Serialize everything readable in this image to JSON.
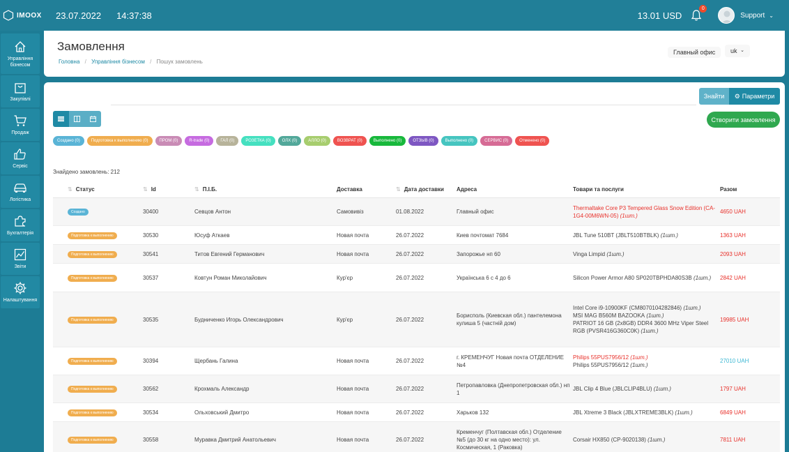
{
  "topbar": {
    "logo_text": "IMOOX",
    "date": "23.07.2022",
    "time": "14:37:38",
    "balance": "13.01 USD",
    "notifications_count": "0",
    "user_name": "Support"
  },
  "sidebar": {
    "items": [
      {
        "label": "Управління бізнесом",
        "icon": "home-icon"
      },
      {
        "label": "Закупівлі",
        "icon": "bag-icon"
      },
      {
        "label": "Продаж",
        "icon": "cart-icon"
      },
      {
        "label": "Сервіс",
        "icon": "thumbs-up-icon"
      },
      {
        "label": "Логістика",
        "icon": "car-icon"
      },
      {
        "label": "Бухгалтерія",
        "icon": "puzzle-icon"
      },
      {
        "label": "Звіти",
        "icon": "chart-icon"
      },
      {
        "label": "Налаштування",
        "icon": "gear-icon"
      }
    ]
  },
  "header": {
    "title": "Замовлення",
    "breadcrumb": [
      "Головна",
      "Управління бізнесом",
      "Пошук замовлень"
    ],
    "office": "Главный офис",
    "language": "uk"
  },
  "toolbar": {
    "find_label": "Знайти",
    "params_label": "Параметри",
    "create_label": "Створити замовлення"
  },
  "filters": [
    {
      "label": "Создано (0)",
      "color": "#5ab4d6"
    },
    {
      "label": "Подготовка к выполнению (0)",
      "color": "#f0ad4e"
    },
    {
      "label": "ПРОМ (0)",
      "color": "#c98bb5"
    },
    {
      "label": "R-trade (0)",
      "color": "#c66be0"
    },
    {
      "label": "ГАЛ (0)",
      "color": "#b7b39a"
    },
    {
      "label": "РОЗЕТКА (0)",
      "color": "#45e0c0"
    },
    {
      "label": "ОЛХ (0)",
      "color": "#52a89a"
    },
    {
      "label": "АЛЛО (0)",
      "color": "#a7cd6e"
    },
    {
      "label": "ВОЗВРАТ (0)",
      "color": "#ef5350"
    },
    {
      "label": "Выполнено (0)",
      "color": "#18b83c"
    },
    {
      "label": "ОТЗЫВ (0)",
      "color": "#7e57c2"
    },
    {
      "label": "Выполнено (0)",
      "color": "#46c5c0"
    },
    {
      "label": "СЕРВИС (0)",
      "color": "#d66b95"
    },
    {
      "label": "Отменено (0)",
      "color": "#ef5350"
    }
  ],
  "found_text": "Знайдено замовлень: 212",
  "table": {
    "headers": {
      "status": "Статус",
      "id": "Id",
      "name": "П.І.Б.",
      "delivery": "Доставка",
      "date": "Дата доставки",
      "address": "Адреса",
      "goods": "Товари та послуги",
      "sum": "Разом"
    },
    "rows": [
      {
        "status": "Создано",
        "status_color": "#5ab4d6",
        "id": "30400",
        "name": "Севцов Антон",
        "delivery": "Самовивіз",
        "date": "01.08.2022",
        "address": [
          "Главный офис"
        ],
        "goods": [
          {
            "text": "Thermaltake Core P3 Tempered Glass Snow Edition (CA-1G4-00M6WN-05)",
            "qty": " (1шт.)",
            "red": true
          }
        ],
        "sum": "4650 UAH",
        "sum_color": "red"
      },
      {
        "status": "Подготовка к выполнению",
        "status_color": "#f0ad4e",
        "id": "30530",
        "name": "Юсуф Аткаев",
        "delivery": "Новая почта",
        "date": "26.07.2022",
        "address": [
          "Киев почтомат 7684"
        ],
        "goods": [
          {
            "text": "JBL Tune 510BT (JBLT510BTBLK)",
            "qty": " (1шт.)",
            "red": false
          }
        ],
        "sum": "1363 UAH",
        "sum_color": "red"
      },
      {
        "status": "Подготовка к выполнению",
        "status_color": "#f0ad4e",
        "id": "30541",
        "name": "Титов Евгений Германович",
        "delivery": "Новая почта",
        "date": "26.07.2022",
        "address": [
          "Запорожье нп 60"
        ],
        "goods": [
          {
            "text": "Vinga Limpid",
            "qty": " (1шт.)",
            "red": false
          }
        ],
        "sum": "2093 UAH",
        "sum_color": "red"
      },
      {
        "status": "Подготовка к выполнению",
        "status_color": "#f0ad4e",
        "id": "30537",
        "name": "Ковтун Роман Миколайович",
        "delivery": "Кур'єр",
        "date": "26.07.2022",
        "address": [
          "Українська 6 с 4 до 6"
        ],
        "goods": [
          {
            "text": "Silicon Power Armor A80 SP020TBPHDA80S3B",
            "qty": " (1шт.)",
            "red": false
          }
        ],
        "sum": "2842 UAH",
        "sum_color": "red"
      },
      {
        "status": "Подготовка к выполнению",
        "status_color": "#f0ad4e",
        "id": "30535",
        "name": "Будниченко Игорь Олександрович",
        "delivery": "Кур'єр",
        "date": "26.07.2022",
        "address": [
          "Борисполь (Киевская обл.) пантелемона кулиша 5 (частній дом)"
        ],
        "goods": [
          {
            "text": "Intel Core i9-10900KF (CM8070104282846)",
            "qty": " (1шт.)",
            "red": false
          },
          {
            "text": "MSI MAG B560M BAZOOKA",
            "qty": " (1шт.)",
            "red": false
          },
          {
            "text": "PATRIOT 16 GB (2x8GB) DDR4 3600 MHz Viper Steel RGB (PVSR416G360C0K)",
            "qty": " (1шт.)",
            "red": false
          }
        ],
        "sum": "19985 UAH",
        "sum_color": "red"
      },
      {
        "status": "Подготовка к выполнению",
        "status_color": "#f0ad4e",
        "id": "30394",
        "name": "Щербань Галина",
        "delivery": "Новая почта",
        "date": "26.07.2022",
        "address": [
          "г. КРЕМЕНЧУГ Новая почта ОТДЕЛЕНИЕ №4"
        ],
        "goods": [
          {
            "text": "Philips 55PUS7956/12",
            "qty": " (1шт.)",
            "red": true
          },
          {
            "text": "Philips 55PUS7956/12",
            "qty": " (1шт.)",
            "red": false
          }
        ],
        "sum": "27010 UAH",
        "sum_color": "teal"
      },
      {
        "status": "Подготовка к выполнению",
        "status_color": "#f0ad4e",
        "id": "30562",
        "name": "Крохмаль Александр",
        "delivery": "Новая почта",
        "date": "26.07.2022",
        "address": [
          "Петропавловка (Днепропетровская обл.) нп 1"
        ],
        "goods": [
          {
            "text": "JBL Clip 4 Blue (JBLCLIP4BLU)",
            "qty": " (1шт.)",
            "red": false
          }
        ],
        "sum": "1797 UAH",
        "sum_color": "red"
      },
      {
        "status": "Подготовка к выполнению",
        "status_color": "#f0ad4e",
        "id": "30534",
        "name": "Ольховський Дмитро",
        "delivery": "Новая почта",
        "date": "26.07.2022",
        "address": [
          "Харьков 132"
        ],
        "goods": [
          {
            "text": "JBL Xtreme 3 Black (JBLXTREME3BLK)",
            "qty": " (1шт.)",
            "red": false
          }
        ],
        "sum": "6849 UAH",
        "sum_color": "red"
      },
      {
        "status": "Подготовка к выполнению",
        "status_color": "#f0ad4e",
        "id": "30558",
        "name": "Муравка Дмитрий Анатольевич",
        "delivery": "Новая почта",
        "date": "26.07.2022",
        "address": [
          "Кременчуг (Полтавская обл.) Отделение №5 (до 30 кг на одно место): ул. Космическая, 1 (Раковка)"
        ],
        "goods": [
          {
            "text": "Corsair HX850 (CP-9020138)",
            "qty": " (1шт.)",
            "red": false
          }
        ],
        "sum": "7811 UAH",
        "sum_color": "red"
      }
    ]
  }
}
